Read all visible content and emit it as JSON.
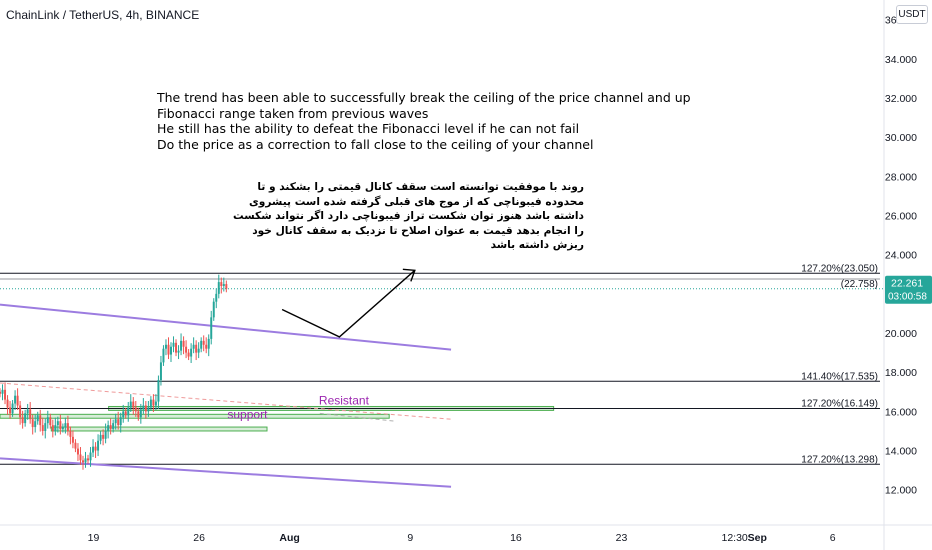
{
  "header": {
    "title": "ChainLink / TetherUS, 4h, BINANCE",
    "currency_button": "USDT"
  },
  "annotations": {
    "english": [
      "The trend has been able to successfully break the ceiling of the price channel and up",
      "Fibonacci range taken from previous waves",
      "He still has the ability to defeat the Fibonacci level if he can not fail",
      "Do the price as a correction to fall close to the ceiling of your channel"
    ],
    "persian": [
      "روند با موفقیت توانسته است سقف کانال قیمتی را بشکند و تا",
      "محدوده فیبوناچی که از موج های قبلی  گرفته شده است پیشروی",
      "داشته باشد هنوز توان شکست تراز فیبوناچی دارد اگر نتواند شکست",
      "را انجام بدهد قیمت به عنوان اصلاح تا نزدیک به سقف کانال خود",
      "ریزش داشته باشد"
    ],
    "resistant_label": "Resistant",
    "support_label": "support"
  },
  "price_tag": {
    "price": "22.261",
    "countdown": "03:00:58",
    "color": "#26a69a"
  },
  "colors": {
    "up": "#26a69a",
    "down": "#ef5350",
    "channel": "#9c7ce0",
    "fib_line": "#131722",
    "zone": "#4caf50",
    "label_purple": "#9c27b0"
  },
  "chart_data": {
    "type": "candlestick",
    "symbol": "ChainLink / TetherUS",
    "interval": "4h",
    "exchange": "BINANCE",
    "ylim": [
      10.2,
      37.0
    ],
    "y_ticks": [
      "12.000",
      "14.000",
      "16.000",
      "18.000",
      "20.000",
      "22.000",
      "24.000",
      "26.000",
      "28.000",
      "30.000",
      "32.000",
      "34.000",
      "36.000"
    ],
    "y_tick_values": [
      12,
      14,
      16,
      18,
      20,
      22,
      24,
      26,
      28,
      30,
      32,
      34,
      36
    ],
    "x_tick_labels": [
      "19",
      "26",
      "Aug",
      "9",
      "16",
      "23",
      "12:30",
      "Sep",
      "6"
    ],
    "x_tick_days": [
      19,
      26,
      32,
      40,
      47,
      54,
      61.5,
      63,
      68
    ],
    "bold_x_ticks": [
      "Aug",
      "Sep"
    ],
    "x_start_day": 12.8,
    "x_end_day": 71.4,
    "candles_4h_close_series": [
      16.9,
      17.1,
      16.6,
      16.2,
      15.9,
      16.4,
      16.8,
      16.3,
      15.7,
      15.4,
      15.9,
      16.1,
      15.6,
      15.2,
      15.5,
      15.8,
      15.3,
      15.0,
      15.4,
      15.7,
      15.3,
      15.0,
      15.3,
      15.5,
      15.1,
      15.2,
      15.4,
      15.0,
      14.7,
      14.4,
      14.1,
      13.8,
      13.5,
      13.4,
      13.6,
      13.5,
      13.9,
      14.2,
      14.0,
      14.5,
      14.8,
      14.6,
      15.0,
      15.3,
      15.1,
      15.4,
      15.6,
      15.3,
      15.7,
      16.0,
      15.8,
      16.2,
      16.5,
      16.2,
      16.0,
      15.7,
      16.1,
      16.3,
      16.0,
      16.2,
      16.6,
      16.3,
      16.5,
      17.6,
      18.5,
      19.2,
      19.4,
      18.9,
      19.3,
      19.5,
      19.0,
      19.1,
      19.6,
      19.3,
      19.0,
      18.8,
      19.2,
      19.4,
      19.0,
      19.2,
      19.6,
      19.4,
      19.2,
      19.7,
      20.8,
      21.6,
      22.0,
      22.6,
      22.4,
      22.5,
      22.26
    ],
    "candles_first_day": 12.8,
    "candle_step_days": 0.1667,
    "last_price": 22.261,
    "fib_levels": [
      {
        "label": "127.20%(23.050)",
        "value": 23.05
      },
      {
        "label": "(22.758)",
        "value": 22.758
      },
      {
        "label": "141.40%(17.535)",
        "value": 17.535
      },
      {
        "label": "127.20%(16.149)",
        "value": 16.149
      },
      {
        "label": "127.20%(13.298)",
        "value": 13.298
      }
    ],
    "channel_upper": [
      [
        12.8,
        21.45
      ],
      [
        42.7,
        19.15
      ]
    ],
    "channel_lower": [
      [
        12.8,
        13.6
      ],
      [
        42.7,
        12.15
      ]
    ],
    "dashed_trend": [
      [
        12.8,
        17.45
      ],
      [
        42.7,
        15.6
      ]
    ],
    "resistant_zone": [
      [
        20.0,
        49.5
      ],
      [
        16.05,
        16.25
      ]
    ],
    "support_zone_1": [
      [
        12.8,
        38.6
      ],
      [
        15.65,
        15.85
      ]
    ],
    "support_zone_2": [
      [
        16.2,
        30.5
      ],
      [
        15.0,
        15.2
      ]
    ],
    "projection_path": [
      [
        31.5,
        21.2
      ],
      [
        35.3,
        19.8
      ],
      [
        40.3,
        23.2
      ]
    ],
    "extra_dashes": [
      [
        34.0,
        15.9
      ],
      [
        39.0,
        15.5
      ]
    ]
  }
}
